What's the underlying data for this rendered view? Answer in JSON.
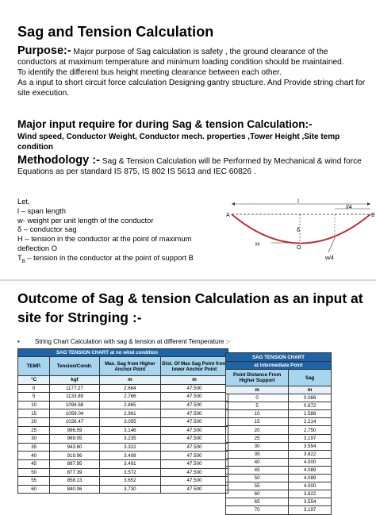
{
  "slide1": {
    "title": "Sag and Tension Calculation",
    "purpose_label": "Purpose:-",
    "purpose_text": " Major purpose of Sag calculation is safety , the ground clearance of the conductors at maximum temperature and minimum loading condition should be maintained.",
    "purpose_line2": "To identify the different  bus height meeting clearance between each other.",
    "purpose_line3": "As a input to short circuit force calculation Designing gantry structure. And Provide string chart for site execution.",
    "major_input_heading": "Major input require for during Sag & tension Calculation:-",
    "major_input_text": " Wind speed, Conductor Weight, Conductor mech. properties ,Tower Height ,Site temp condition",
    "methodology_label": "Methodology :-",
    "methodology_text": " Sag & Tension Calculation will be Performed by Mechanical & wind force Equations as per standard IS 875, IS 802 IS 5613  and IEC 60826 .",
    "let_list": [
      "Let,",
      "l – span length",
      "w- weight per unit length of the conductor",
      "δ – conductor sag",
      "H – tension in the conductor at the point of maximum",
      "deflection O",
      "T_B – tension in the conductor at the point of support B"
    ],
    "diagram_labels": {
      "l": "l",
      "quarter_l": "l/4",
      "A": "A",
      "B": "B",
      "delta": "δ",
      "H": "H",
      "O": "O",
      "w4": "w/4"
    }
  },
  "slide2": {
    "outcome_title": "Outcome of Sag & tension Calculation as an input at site for Stringing  :-",
    "bullet": "•",
    "bullet_text": "String Chart Calculation with sag & tension at different Temperature :-",
    "table1": {
      "caption": "SAG TENSION CHART at no wind condition",
      "headers": [
        "TEMP.",
        "Tension/Condr.",
        "Max. Sag from Higher Anchor Point",
        "Dist. Of Max Sag Point from lower Anchor Point"
      ],
      "units": [
        "°C",
        "kgf",
        "m",
        "m"
      ],
      "rows": [
        [
          "0",
          "1177.27",
          "2.664",
          "47.500"
        ],
        [
          "5",
          "1133.89",
          "2.766",
          "47.500"
        ],
        [
          "10",
          "1094.68",
          "2.865",
          "47.500"
        ],
        [
          "15",
          "1059.04",
          "2.961",
          "47.500"
        ],
        [
          "20",
          "1026.47",
          "3.055",
          "47.500"
        ],
        [
          "25",
          "996.59",
          "3.146",
          "47.500"
        ],
        [
          "30",
          "969.05",
          "3.235",
          "47.500"
        ],
        [
          "35",
          "943.60",
          "3.322",
          "47.500"
        ],
        [
          "40",
          "919.96",
          "3.408",
          "47.500"
        ],
        [
          "45",
          "897.95",
          "3.491",
          "47.500"
        ],
        [
          "50",
          "877.39",
          "3.572",
          "47.500"
        ],
        [
          "55",
          "858.13",
          "3.652",
          "47.500"
        ],
        [
          "60",
          "840.06",
          "3.730",
          "47.500"
        ]
      ]
    },
    "table2": {
      "caption1": "SAG TENSION CHART",
      "caption2": "at intermediate Point",
      "headers": [
        "Point Distance From Higher Support",
        "Sag"
      ],
      "units": [
        "m",
        "m"
      ],
      "rows": [
        [
          "0",
          "0.066"
        ],
        [
          "5",
          "0.872"
        ],
        [
          "10",
          "1.588"
        ],
        [
          "15",
          "2.214"
        ],
        [
          "20",
          "2.750"
        ],
        [
          "25",
          "3.197"
        ],
        [
          "30",
          "3.554"
        ],
        [
          "35",
          "3.822"
        ],
        [
          "40",
          "4.000"
        ],
        [
          "45",
          "4.089"
        ],
        [
          "50",
          "4.089"
        ],
        [
          "55",
          "4.000"
        ],
        [
          "60",
          "3.822"
        ],
        [
          "65",
          "3.554"
        ],
        [
          "70",
          "3.197"
        ]
      ]
    }
  },
  "colors": {
    "table_caption_blue": "#1d63a8",
    "table_header_lightblue": "#a8d5ee",
    "curve_red": "#c0282d",
    "dashed_line": "#333333"
  }
}
